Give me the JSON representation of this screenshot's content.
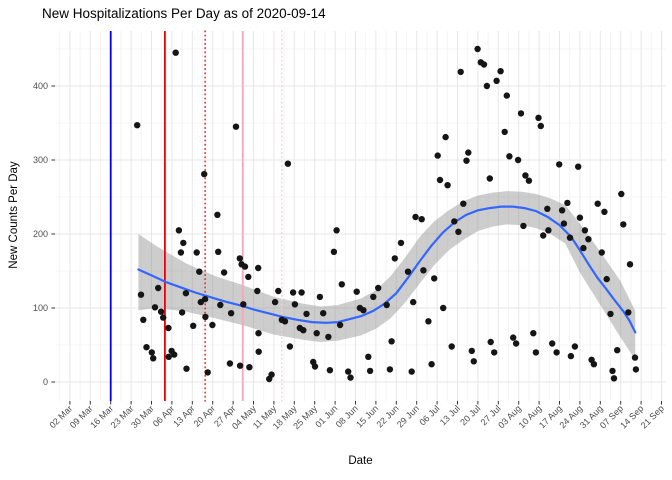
{
  "chart": {
    "title": "New Hospitalizations Per Day as of 2020-09-14",
    "xlabel": "Date",
    "ylabel": "New Counts Per Day"
  },
  "chart_data": {
    "type": "scatter",
    "title": "New Hospitalizations Per Day as of 2020-09-14",
    "xlabel": "Date",
    "ylabel": "New Counts Per Day",
    "x_unit": "days since 02 Mar 2020",
    "x_tick_interval_days": 7,
    "x_tick_labels": [
      "02 Mar",
      "09 Mar",
      "16 Mar",
      "23 Mar",
      "30 Mar",
      "06 Apr",
      "13 Apr",
      "20 Apr",
      "27 Apr",
      "04 May",
      "11 May",
      "18 May",
      "25 May",
      "01 Jun",
      "08 Jun",
      "15 Jun",
      "22 Jun",
      "29 Jun",
      "06 Jul",
      "13 Jul",
      "20 Jul",
      "27 Jul",
      "03 Aug",
      "10 Aug",
      "17 Aug",
      "24 Aug",
      "31 Aug",
      "07 Sep",
      "14 Sep",
      "21 Sep"
    ],
    "y_ticks": [
      0,
      100,
      200,
      300,
      400
    ],
    "y_minor_ticks": [
      50,
      150,
      250,
      350,
      450
    ],
    "ylim": [
      -25,
      474
    ],
    "xlim_days": [
      -5.1,
      204.6
    ],
    "grid": true,
    "legend": false,
    "colors": {
      "point": "#151515",
      "smooth": "#3366FF",
      "ribbon": "#888888",
      "grid_major": "#E7E7E7",
      "grid_minor": "#F4F4F4",
      "tick_text": "#4d4d4d",
      "tick_mark": "#333333"
    },
    "vlines": [
      {
        "day": 14.0,
        "color": "#0000F0",
        "style": "solid"
      },
      {
        "day": 32.6,
        "color": "#F00000",
        "style": "solid"
      },
      {
        "day": 46.4,
        "color": "#E02020",
        "style": "dotted"
      },
      {
        "day": 59.3,
        "color": "#F6A8B8",
        "style": "solid"
      },
      {
        "day": 72.7,
        "color": "#F9CFD8",
        "style": "dotted"
      }
    ],
    "points": [
      [
        23.1,
        347
      ],
      [
        24.4,
        118
      ],
      [
        25.2,
        84
      ],
      [
        26.3,
        47
      ],
      [
        28.1,
        40
      ],
      [
        28.6,
        32
      ],
      [
        29.2,
        101
      ],
      [
        30.3,
        127
      ],
      [
        31.3,
        95
      ],
      [
        32.0,
        87
      ],
      [
        33.8,
        73
      ],
      [
        33.9,
        34
      ],
      [
        34.9,
        42
      ],
      [
        35.8,
        37
      ],
      [
        36.3,
        445
      ],
      [
        37.4,
        205
      ],
      [
        38.1,
        175
      ],
      [
        38.5,
        94
      ],
      [
        38.9,
        188
      ],
      [
        39.8,
        120
      ],
      [
        40.0,
        18
      ],
      [
        42.3,
        76
      ],
      [
        43.5,
        175
      ],
      [
        44.4,
        149
      ],
      [
        44.9,
        108
      ],
      [
        46.1,
        281
      ],
      [
        46.4,
        112
      ],
      [
        46.5,
        88
      ],
      [
        47.3,
        13
      ],
      [
        48.9,
        77
      ],
      [
        50.6,
        226
      ],
      [
        50.9,
        176
      ],
      [
        51.6,
        104
      ],
      [
        52.9,
        148
      ],
      [
        54.9,
        25
      ],
      [
        55.3,
        93
      ],
      [
        57.0,
        345
      ],
      [
        58.3,
        167
      ],
      [
        58.4,
        22
      ],
      [
        58.9,
        159
      ],
      [
        59.5,
        105
      ],
      [
        60.1,
        156
      ],
      [
        61.2,
        142
      ],
      [
        61.6,
        20
      ],
      [
        64.3,
        123
      ],
      [
        64.6,
        154
      ],
      [
        64.7,
        66
      ],
      [
        64.8,
        41
      ],
      [
        68.4,
        4
      ],
      [
        69.2,
        10
      ],
      [
        70.4,
        108
      ],
      [
        71.5,
        123
      ],
      [
        72.7,
        84
      ],
      [
        73.8,
        82
      ],
      [
        74.8,
        295
      ],
      [
        75.5,
        48
      ],
      [
        76.6,
        121
      ],
      [
        77.2,
        105
      ],
      [
        78.9,
        73
      ],
      [
        79.5,
        121
      ],
      [
        80.1,
        70
      ],
      [
        81.2,
        92
      ],
      [
        83.5,
        27
      ],
      [
        84.1,
        21
      ],
      [
        84.7,
        66
      ],
      [
        85.8,
        115
      ],
      [
        86.9,
        93
      ],
      [
        88.7,
        61
      ],
      [
        89.2,
        16
      ],
      [
        90.6,
        176
      ],
      [
        91.5,
        205
      ],
      [
        92.7,
        77
      ],
      [
        93.3,
        132
      ],
      [
        95.5,
        14
      ],
      [
        96.3,
        6
      ],
      [
        98.4,
        122
      ],
      [
        99.5,
        100
      ],
      [
        100.7,
        97
      ],
      [
        102.4,
        34
      ],
      [
        103.0,
        15
      ],
      [
        104.1,
        115
      ],
      [
        105.8,
        127
      ],
      [
        108.7,
        104
      ],
      [
        109.8,
        17
      ],
      [
        110.4,
        55
      ],
      [
        111.5,
        167
      ],
      [
        113.6,
        188
      ],
      [
        116.0,
        149
      ],
      [
        117.3,
        14
      ],
      [
        117.8,
        108
      ],
      [
        118.6,
        223
      ],
      [
        120.7,
        220
      ],
      [
        121.3,
        151
      ],
      [
        123.0,
        82
      ],
      [
        124.1,
        24
      ],
      [
        125.0,
        140
      ],
      [
        126.2,
        306
      ],
      [
        127.0,
        273
      ],
      [
        128.1,
        100
      ],
      [
        128.9,
        331
      ],
      [
        129.6,
        266
      ],
      [
        131.0,
        48
      ],
      [
        131.9,
        217
      ],
      [
        133.3,
        203
      ],
      [
        134.1,
        419
      ],
      [
        135.0,
        241
      ],
      [
        136.1,
        299
      ],
      [
        136.7,
        310
      ],
      [
        137.9,
        42
      ],
      [
        138.6,
        28
      ],
      [
        139.9,
        450
      ],
      [
        141.0,
        432
      ],
      [
        142.1,
        429
      ],
      [
        143.1,
        400
      ],
      [
        144.1,
        275
      ],
      [
        144.4,
        54
      ],
      [
        145.6,
        40
      ],
      [
        146.4,
        407
      ],
      [
        147.8,
        420
      ],
      [
        149.2,
        338
      ],
      [
        149.9,
        387
      ],
      [
        150.8,
        305
      ],
      [
        152.1,
        60
      ],
      [
        153.1,
        52
      ],
      [
        153.8,
        300
      ],
      [
        154.8,
        363
      ],
      [
        155.6,
        211
      ],
      [
        156.3,
        279
      ],
      [
        157.5,
        272
      ],
      [
        159.0,
        66
      ],
      [
        159.9,
        40
      ],
      [
        160.8,
        357
      ],
      [
        161.6,
        346
      ],
      [
        162.4,
        198
      ],
      [
        163.8,
        234
      ],
      [
        164.2,
        205
      ],
      [
        165.5,
        52
      ],
      [
        167.0,
        40
      ],
      [
        167.9,
        294
      ],
      [
        168.9,
        232
      ],
      [
        169.5,
        214
      ],
      [
        170.7,
        242
      ],
      [
        171.6,
        195
      ],
      [
        171.9,
        35
      ],
      [
        173.3,
        48
      ],
      [
        174.4,
        291
      ],
      [
        175.0,
        222
      ],
      [
        176.2,
        181
      ],
      [
        176.7,
        205
      ],
      [
        177.9,
        193
      ],
      [
        179.0,
        30
      ],
      [
        179.8,
        24
      ],
      [
        181.1,
        241
      ],
      [
        182.5,
        175
      ],
      [
        183.4,
        230
      ],
      [
        184.2,
        139
      ],
      [
        185.5,
        92
      ],
      [
        186.2,
        15
      ],
      [
        186.7,
        5
      ],
      [
        187.8,
        43
      ],
      [
        189.2,
        254
      ],
      [
        189.9,
        213
      ],
      [
        191.6,
        94
      ],
      [
        192.2,
        159
      ],
      [
        193.9,
        33
      ],
      [
        194.2,
        17
      ]
    ],
    "smooth_line": [
      [
        23.5,
        152
      ],
      [
        28,
        144
      ],
      [
        33,
        135
      ],
      [
        38,
        128
      ],
      [
        43,
        121
      ],
      [
        48,
        115
      ],
      [
        53,
        109
      ],
      [
        58,
        104
      ],
      [
        63,
        98
      ],
      [
        68,
        93
      ],
      [
        73,
        88
      ],
      [
        78,
        84
      ],
      [
        83,
        81
      ],
      [
        88,
        80
      ],
      [
        92,
        81
      ],
      [
        96,
        85
      ],
      [
        100,
        89
      ],
      [
        104,
        96
      ],
      [
        108,
        106
      ],
      [
        112,
        120
      ],
      [
        116,
        141
      ],
      [
        120,
        163
      ],
      [
        124,
        184
      ],
      [
        128,
        202
      ],
      [
        132,
        216
      ],
      [
        136,
        226
      ],
      [
        140,
        232
      ],
      [
        144,
        235
      ],
      [
        148,
        237
      ],
      [
        152,
        237
      ],
      [
        156,
        235
      ],
      [
        160,
        231
      ],
      [
        164,
        223
      ],
      [
        168,
        212
      ],
      [
        172,
        196
      ],
      [
        175,
        178
      ],
      [
        178,
        159
      ],
      [
        181,
        141
      ],
      [
        184,
        126
      ],
      [
        187,
        110
      ],
      [
        190,
        95
      ],
      [
        192,
        83
      ],
      [
        194,
        67
      ]
    ],
    "ribbon": [
      [
        23.5,
        200,
        97
      ],
      [
        30,
        183,
        100
      ],
      [
        40,
        160,
        95
      ],
      [
        50,
        143,
        86
      ],
      [
        60,
        130,
        76
      ],
      [
        70,
        115,
        64
      ],
      [
        80,
        106,
        57
      ],
      [
        86,
        102,
        54
      ],
      [
        92,
        104,
        56
      ],
      [
        100,
        113,
        63
      ],
      [
        105,
        124,
        72
      ],
      [
        110,
        143,
        86
      ],
      [
        115,
        168,
        107
      ],
      [
        120,
        196,
        133
      ],
      [
        125,
        217,
        158
      ],
      [
        130,
        232,
        178
      ],
      [
        135,
        244,
        192
      ],
      [
        140,
        252,
        204
      ],
      [
        145,
        256,
        210
      ],
      [
        150,
        258,
        213
      ],
      [
        155,
        257,
        212
      ],
      [
        160,
        254,
        208
      ],
      [
        165,
        248,
        200
      ],
      [
        170,
        239,
        187
      ],
      [
        175,
        214,
        148
      ],
      [
        182,
        176,
        104
      ],
      [
        189,
        136,
        60
      ],
      [
        194,
        96,
        30
      ]
    ]
  }
}
